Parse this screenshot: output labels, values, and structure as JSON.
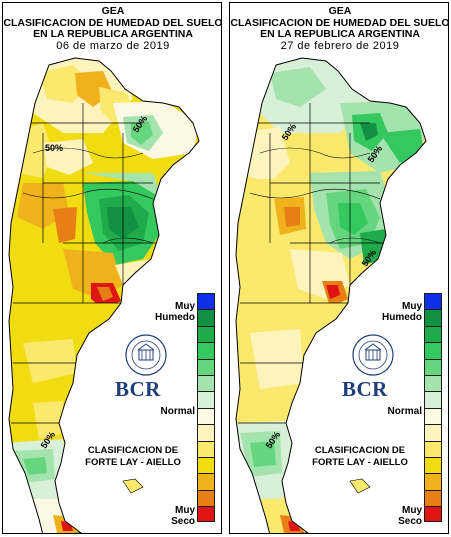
{
  "panels": [
    {
      "header": "GEA",
      "title_line1": "CLASIFICACION DE HUMEDAD DEL SUELO",
      "title_line2": "EN LA REPUBLICA ARGENTINA",
      "date": "06 de marzo de 2019",
      "contour_labels": [
        "50%",
        "50%",
        "50%"
      ],
      "legend": {
        "wet": "Muy Humedo",
        "normal": "Normal",
        "dry": "Muy Seco"
      },
      "classification_line1": "CLASIFICACION DE",
      "classification_line2": "FORTE LAY - AIELLO",
      "logo_text": "BCR"
    },
    {
      "header": "GEA",
      "title_line1": "CLASIFICACION DE HUMEDAD DEL SUELO",
      "title_line2": "EN LA REPUBLICA ARGENTINA",
      "date": "27 de febrero de 2019",
      "contour_labels": [
        "50%",
        "50%",
        "50%",
        "50%"
      ],
      "legend": {
        "wet": "Muy Humedo",
        "normal": "Normal",
        "dry": "Muy Seco"
      },
      "classification_line1": "CLASIFICACION DE",
      "classification_line2": "FORTE LAY - AIELLO",
      "logo_text": "BCR"
    }
  ],
  "legend_colors": [
    "#1030e8",
    "#139042",
    "#1fab4a",
    "#34c85e",
    "#66d67e",
    "#a4e3ad",
    "#d8f0d8",
    "#fbf8e4",
    "#fdf4bd",
    "#fbe96e",
    "#f1dc12",
    "#f0b21c",
    "#e77f16",
    "#e11414"
  ],
  "colors": {
    "very_wet": "#1030e8",
    "wet_dark": "#139042",
    "wet": "#1fab4a",
    "normal": "#fbf8e4",
    "dry": "#f1dc12",
    "very_dry": "#e11414"
  }
}
